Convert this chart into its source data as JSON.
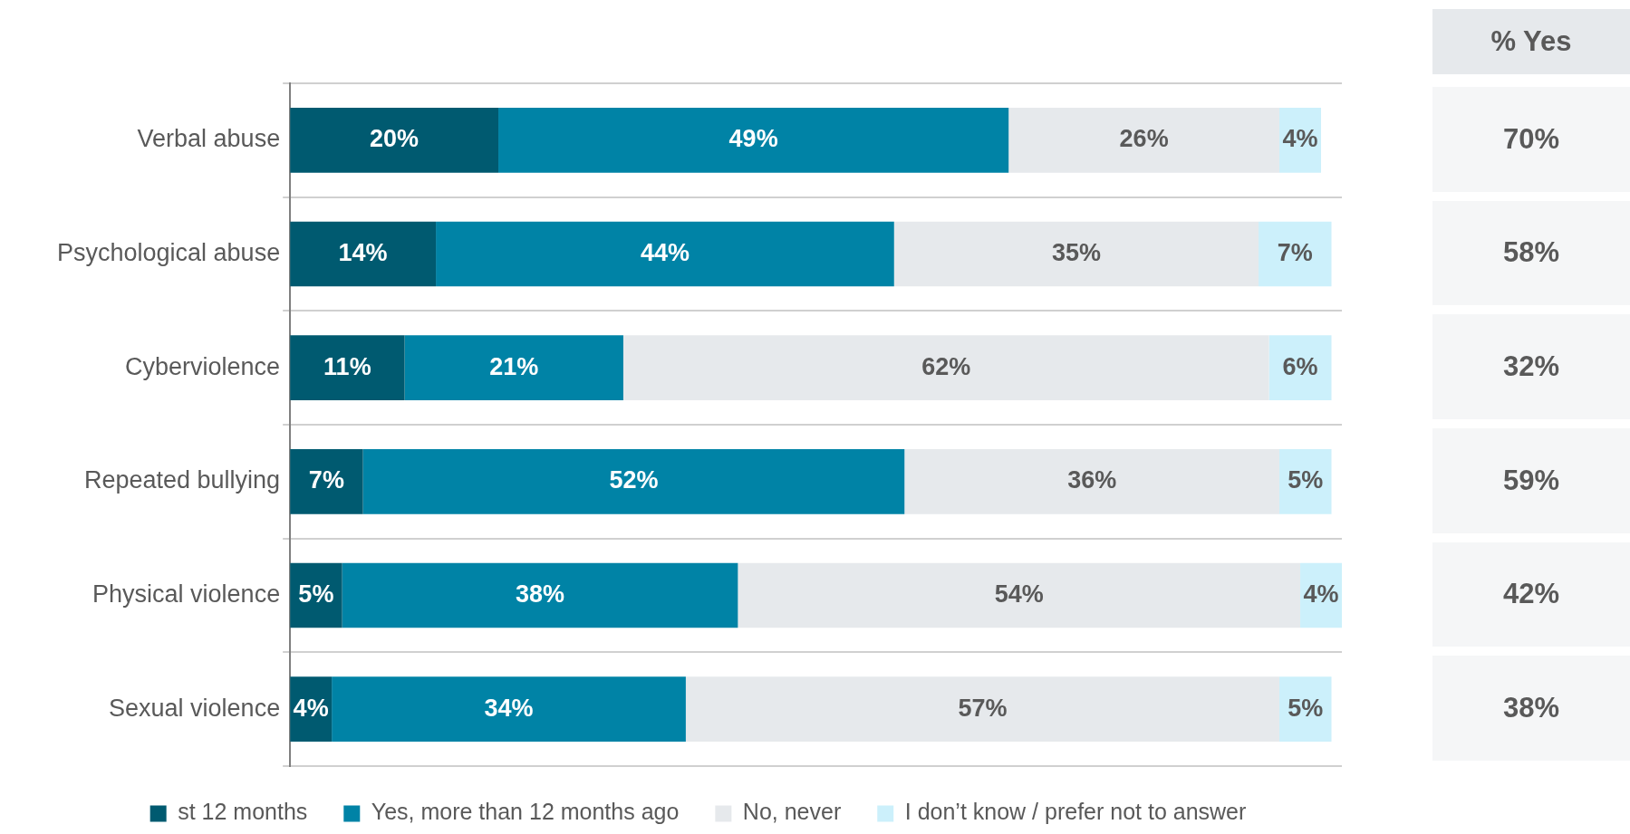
{
  "chart_data": {
    "type": "bar",
    "orientation": "horizontal",
    "stacked": true,
    "grid": "y",
    "legend": "bottom",
    "categories": [
      "Verbal abuse",
      "Psychological abuse",
      "Cyberviolence",
      "Repeated bullying",
      "Physical violence",
      "Sexual violence"
    ],
    "series": [
      {
        "name": "st 12 months",
        "color": "#005a70",
        "values": [
          20,
          14,
          11,
          7,
          5,
          4
        ],
        "value_labels": [
          "20%",
          "14%",
          "11%",
          "7%",
          "5%",
          "4%"
        ]
      },
      {
        "name": "Yes, more than 12 months ago",
        "color": "#0083a6",
        "values": [
          49,
          44,
          21,
          52,
          38,
          34
        ],
        "value_labels": [
          "49%",
          "44%",
          "21%",
          "52%",
          "38%",
          "34%"
        ]
      },
      {
        "name": "No, never",
        "color": "#e6e9ec",
        "values": [
          26,
          35,
          62,
          36,
          54,
          57
        ],
        "value_labels": [
          "26%",
          "35%",
          "62%",
          "36%",
          "54%",
          "57%"
        ]
      },
      {
        "name": "I don’t know / prefer not to answer",
        "color": "#ccf0fb",
        "values": [
          4,
          7,
          6,
          5,
          4,
          5
        ],
        "value_labels": [
          "4%",
          "7%",
          "6%",
          "5%",
          "4%",
          "5%"
        ]
      }
    ],
    "annotations": [
      "% Yes",
      "70%",
      "58%",
      "32%",
      "59%",
      "42%",
      "38%"
    ]
  }
}
